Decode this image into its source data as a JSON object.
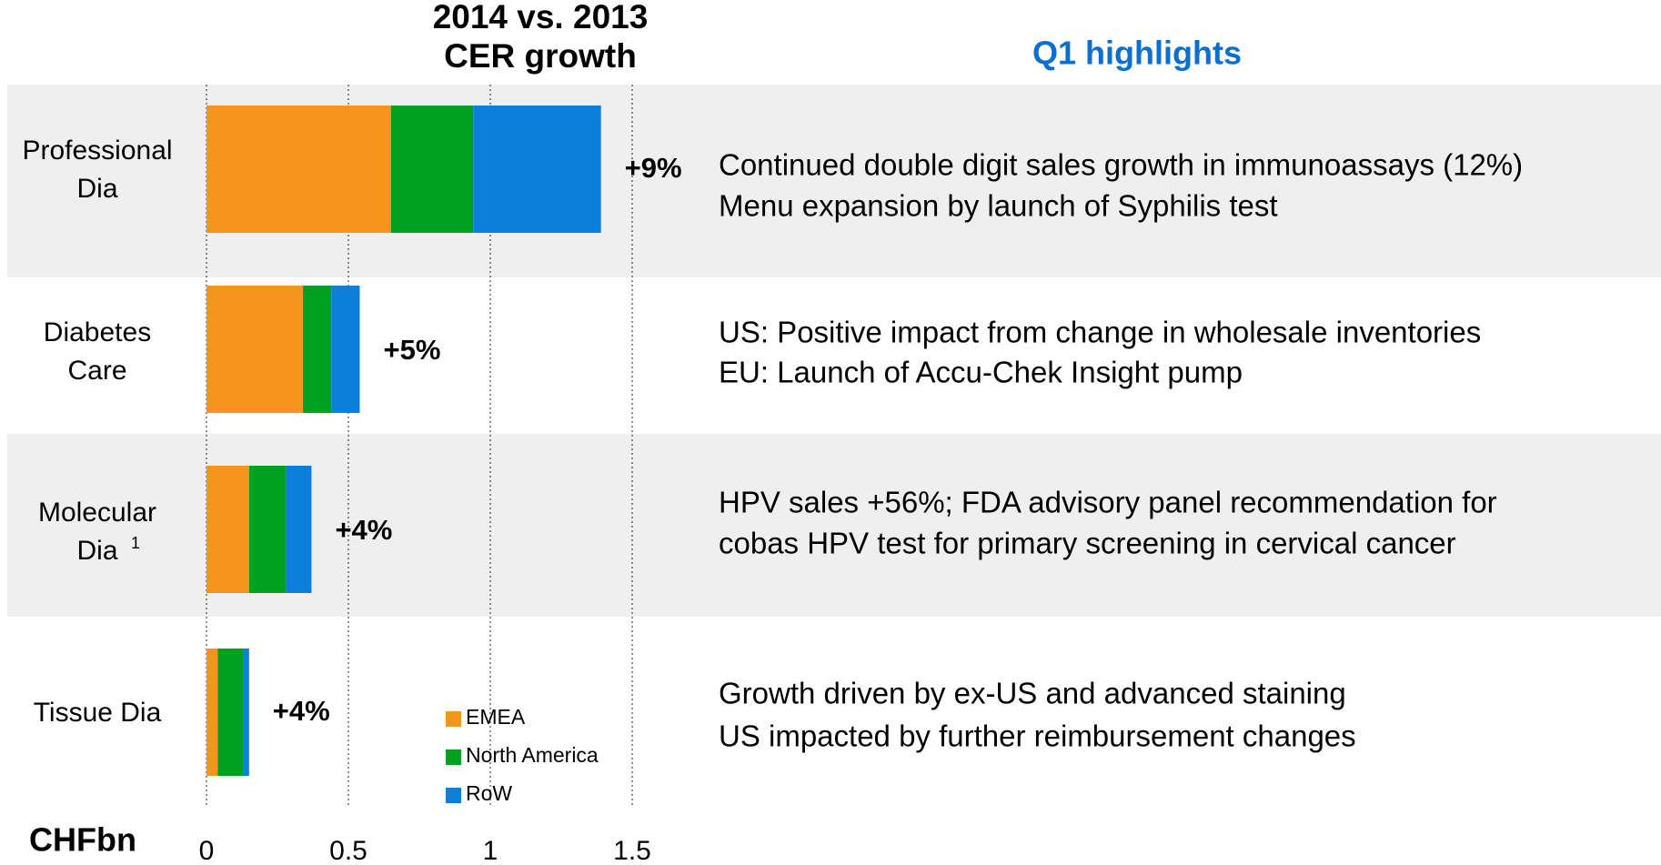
{
  "chart_data": {
    "type": "stacked-barh",
    "title": [
      "2014 vs. 2013",
      "CER growth"
    ],
    "highlights_title": "Q1 highlights",
    "xlabel": "CHFbn",
    "categories": [
      "Professional\nDia",
      "Diabetes\nCare",
      "Molecular\nDia",
      "Tissue Dia"
    ],
    "category_footnotes": [
      null,
      null,
      "1",
      null
    ],
    "series": [
      {
        "name": "EMEA",
        "color": "#f7941d",
        "values": [
          0.65,
          0.34,
          0.15,
          0.04
        ]
      },
      {
        "name": "North America",
        "color": "#00a020",
        "values": [
          0.29,
          0.1,
          0.13,
          0.09
        ]
      },
      {
        "name": "RoW",
        "color": "#0b7fd9",
        "values": [
          0.45,
          0.1,
          0.09,
          0.02
        ]
      }
    ],
    "growth_labels": [
      "+9%",
      "+5%",
      "+4%",
      "+4%"
    ],
    "highlights": [
      [
        "Continued double digit sales growth in immunoassays (12%)",
        "Menu expansion by launch of Syphilis test"
      ],
      [
        "US: Positive impact from change in wholesale inventories",
        "EU: Launch of Accu-Chek Insight pump"
      ],
      [
        "HPV sales +56%; FDA advisory panel recommendation for",
        "cobas HPV test for primary screening in cervical cancer"
      ],
      [
        "Growth driven by ex-US and advanced staining",
        "US impacted by further reimbursement changes"
      ]
    ],
    "xlim": [
      0,
      1.5
    ],
    "xticks": [
      0,
      0.5,
      1,
      1.5
    ],
    "grid": true
  }
}
